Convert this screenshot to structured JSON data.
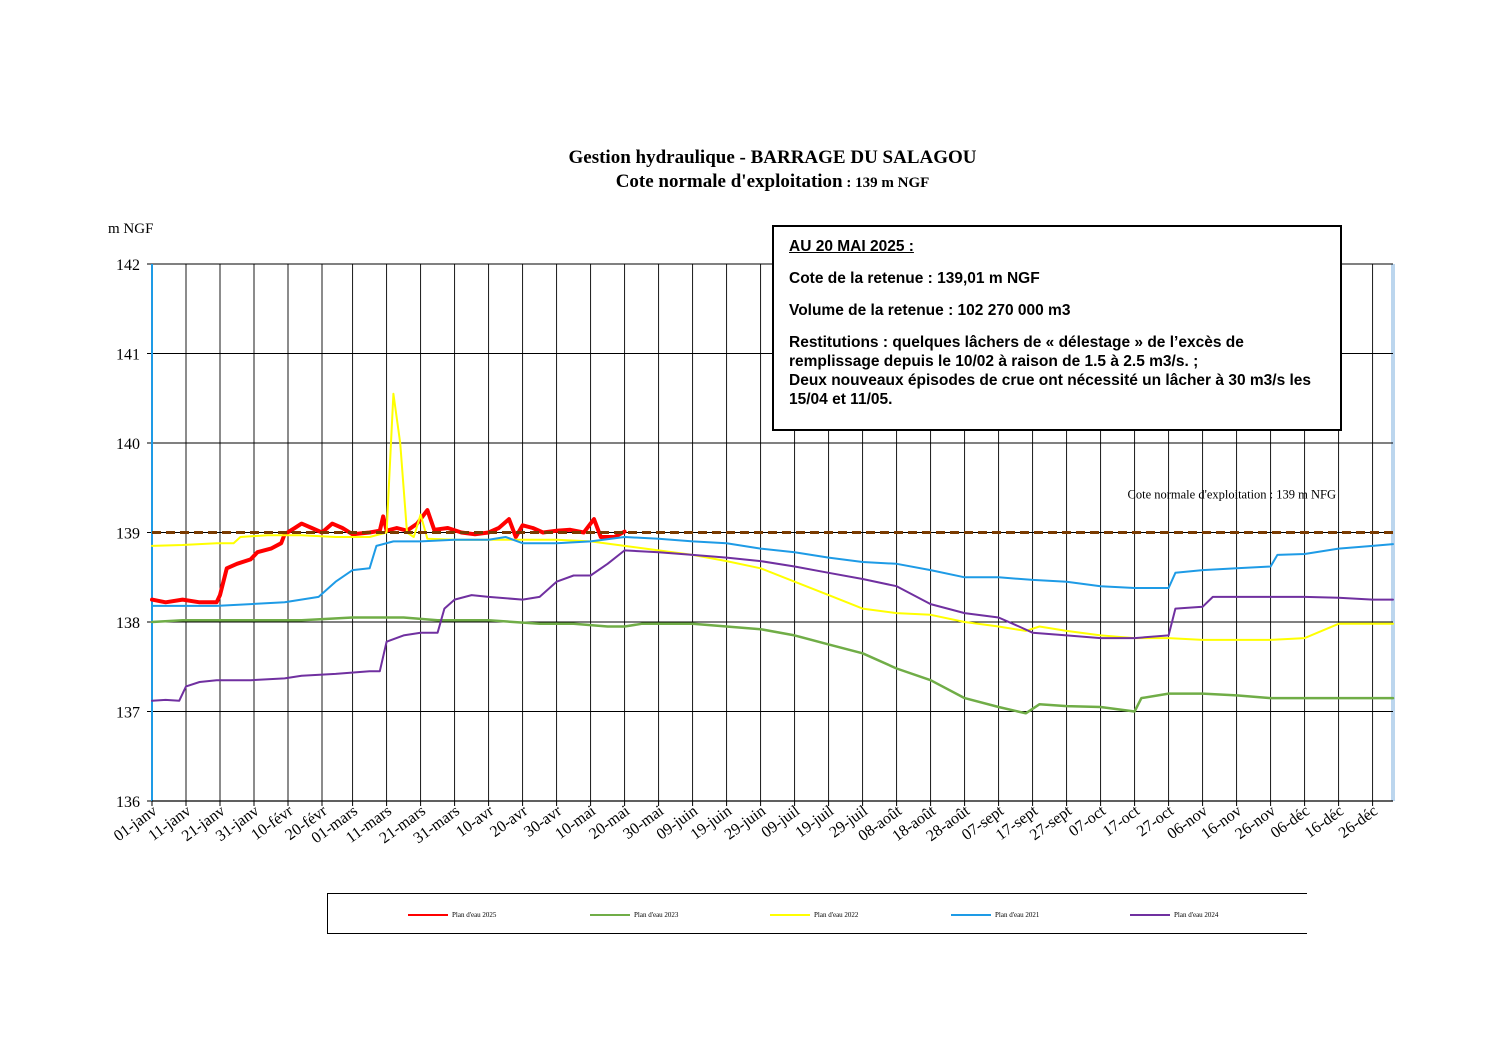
{
  "title": {
    "line1": "Gestion hydraulique - BARRAGE DU SALAGOU",
    "line2_main": "Cote normale d'exploitation",
    "line2_small": " : 139 m NGF"
  },
  "info_box": {
    "heading": "AU 20 MAI 2025 :",
    "cote": "Cote de la retenue : 139,01 m NGF",
    "volume": "Volume de la retenue : 102 270 000 m3",
    "restitutions": "Restitutions : quelques lâchers de « délestage » de l’excès de remplissage depuis le 10/02 à raison de 1.5 à 2.5 m3/s. ;",
    "crues": "Deux nouveaux épisodes de crue ont nécessité un lâcher à 30 m3/s les 15/04 et 11/05."
  },
  "chart_data": {
    "type": "line",
    "title": "Gestion hydraulique - BARRAGE DU SALAGOU",
    "ylabel": "m NGF",
    "ylim": [
      136,
      142
    ],
    "yticks": [
      136,
      137,
      138,
      139,
      140,
      141,
      142
    ],
    "xlim_day_of_year": [
      1,
      366
    ],
    "xticks": [
      {
        "day": 1,
        "label": "01-janv"
      },
      {
        "day": 11,
        "label": "11-janv"
      },
      {
        "day": 21,
        "label": "21-janv"
      },
      {
        "day": 31,
        "label": "31-janv"
      },
      {
        "day": 41,
        "label": "10-févr"
      },
      {
        "day": 51,
        "label": "20-févr"
      },
      {
        "day": 60,
        "label": "01-mars"
      },
      {
        "day": 70,
        "label": "11-mars"
      },
      {
        "day": 80,
        "label": "21-mars"
      },
      {
        "day": 90,
        "label": "31-mars"
      },
      {
        "day": 100,
        "label": "10-avr"
      },
      {
        "day": 110,
        "label": "20-avr"
      },
      {
        "day": 120,
        "label": "30-avr"
      },
      {
        "day": 130,
        "label": "10-mai"
      },
      {
        "day": 140,
        "label": "20-mai"
      },
      {
        "day": 150,
        "label": "30-mai"
      },
      {
        "day": 160,
        "label": "09-juin"
      },
      {
        "day": 170,
        "label": "19-juin"
      },
      {
        "day": 180,
        "label": "29-juin"
      },
      {
        "day": 190,
        "label": "09-juil"
      },
      {
        "day": 200,
        "label": "19-juil"
      },
      {
        "day": 210,
        "label": "29-juil"
      },
      {
        "day": 220,
        "label": "08-août"
      },
      {
        "day": 230,
        "label": "18-août"
      },
      {
        "day": 240,
        "label": "28-août"
      },
      {
        "day": 250,
        "label": "07-sept"
      },
      {
        "day": 260,
        "label": "17-sept"
      },
      {
        "day": 270,
        "label": "27-sept"
      },
      {
        "day": 280,
        "label": "07-oct"
      },
      {
        "day": 290,
        "label": "17-oct"
      },
      {
        "day": 300,
        "label": "27-oct"
      },
      {
        "day": 310,
        "label": "06-nov"
      },
      {
        "day": 320,
        "label": "16-nov"
      },
      {
        "day": 330,
        "label": "26-nov"
      },
      {
        "day": 340,
        "label": "06-déc"
      },
      {
        "day": 350,
        "label": "16-déc"
      },
      {
        "day": 360,
        "label": "26-déc"
      }
    ],
    "reference_line": {
      "value": 139,
      "label": "Cote normale d'exploitation : 139 m NFG",
      "color": "#7a3b00"
    },
    "grid": true,
    "legend_position": "bottom",
    "series": [
      {
        "name": "Plan d'eau 2025",
        "color": "#ff0000",
        "width": 4,
        "points": [
          [
            1,
            138.25
          ],
          [
            5,
            138.22
          ],
          [
            10,
            138.25
          ],
          [
            15,
            138.22
          ],
          [
            20,
            138.22
          ],
          [
            21,
            138.3
          ],
          [
            23,
            138.6
          ],
          [
            26,
            138.65
          ],
          [
            30,
            138.7
          ],
          [
            32,
            138.78
          ],
          [
            36,
            138.82
          ],
          [
            39,
            138.88
          ],
          [
            40,
            138.98
          ],
          [
            43,
            139.05
          ],
          [
            45,
            139.1
          ],
          [
            48,
            139.05
          ],
          [
            51,
            139.0
          ],
          [
            54,
            139.1
          ],
          [
            57,
            139.05
          ],
          [
            60,
            138.98
          ],
          [
            65,
            139.0
          ],
          [
            68,
            139.02
          ],
          [
            69,
            139.18
          ],
          [
            70,
            139.02
          ],
          [
            73,
            139.05
          ],
          [
            76,
            139.02
          ],
          [
            79,
            139.1
          ],
          [
            82,
            139.25
          ],
          [
            84,
            139.03
          ],
          [
            88,
            139.05
          ],
          [
            92,
            139.0
          ],
          [
            96,
            138.98
          ],
          [
            100,
            139.0
          ],
          [
            103,
            139.05
          ],
          [
            106,
            139.15
          ],
          [
            108,
            138.95
          ],
          [
            110,
            139.08
          ],
          [
            113,
            139.05
          ],
          [
            116,
            139.0
          ],
          [
            120,
            139.02
          ],
          [
            124,
            139.03
          ],
          [
            128,
            139.0
          ],
          [
            131,
            139.15
          ],
          [
            133,
            138.95
          ],
          [
            137,
            138.95
          ],
          [
            140,
            139.01
          ]
        ]
      },
      {
        "name": "Plan d'eau 2023",
        "color": "#70ad47",
        "width": 2.5,
        "points": [
          [
            1,
            138.0
          ],
          [
            10,
            138.02
          ],
          [
            20,
            138.02
          ],
          [
            30,
            138.02
          ],
          [
            45,
            138.02
          ],
          [
            60,
            138.05
          ],
          [
            75,
            138.05
          ],
          [
            85,
            138.02
          ],
          [
            100,
            138.02
          ],
          [
            115,
            137.98
          ],
          [
            125,
            137.98
          ],
          [
            135,
            137.95
          ],
          [
            140,
            137.95
          ],
          [
            145,
            137.98
          ],
          [
            160,
            137.98
          ],
          [
            170,
            137.95
          ],
          [
            180,
            137.92
          ],
          [
            190,
            137.85
          ],
          [
            200,
            137.75
          ],
          [
            210,
            137.65
          ],
          [
            220,
            137.48
          ],
          [
            230,
            137.35
          ],
          [
            240,
            137.15
          ],
          [
            250,
            137.05
          ],
          [
            258,
            136.98
          ],
          [
            262,
            137.08
          ],
          [
            270,
            137.06
          ],
          [
            280,
            137.05
          ],
          [
            290,
            137.0
          ],
          [
            292,
            137.15
          ],
          [
            300,
            137.2
          ],
          [
            310,
            137.2
          ],
          [
            320,
            137.18
          ],
          [
            330,
            137.15
          ],
          [
            340,
            137.15
          ],
          [
            350,
            137.15
          ],
          [
            366,
            137.15
          ]
        ]
      },
      {
        "name": "Plan d'eau 2022",
        "color": "#ffff00",
        "width": 2,
        "points": [
          [
            1,
            138.85
          ],
          [
            10,
            138.86
          ],
          [
            20,
            138.88
          ],
          [
            25,
            138.88
          ],
          [
            27,
            138.95
          ],
          [
            35,
            138.97
          ],
          [
            45,
            138.97
          ],
          [
            55,
            138.95
          ],
          [
            65,
            138.95
          ],
          [
            70,
            139.0
          ],
          [
            72,
            140.55
          ],
          [
            74,
            140.0
          ],
          [
            76,
            139.0
          ],
          [
            78,
            138.95
          ],
          [
            80,
            139.2
          ],
          [
            82,
            138.93
          ],
          [
            90,
            138.92
          ],
          [
            100,
            138.92
          ],
          [
            110,
            138.92
          ],
          [
            120,
            138.92
          ],
          [
            130,
            138.9
          ],
          [
            140,
            138.85
          ],
          [
            150,
            138.8
          ],
          [
            160,
            138.75
          ],
          [
            170,
            138.68
          ],
          [
            180,
            138.6
          ],
          [
            190,
            138.45
          ],
          [
            200,
            138.3
          ],
          [
            210,
            138.15
          ],
          [
            220,
            138.1
          ],
          [
            230,
            138.08
          ],
          [
            240,
            138.0
          ],
          [
            250,
            137.95
          ],
          [
            258,
            137.9
          ],
          [
            262,
            137.95
          ],
          [
            270,
            137.9
          ],
          [
            280,
            137.85
          ],
          [
            290,
            137.82
          ],
          [
            300,
            137.82
          ],
          [
            310,
            137.8
          ],
          [
            320,
            137.8
          ],
          [
            330,
            137.8
          ],
          [
            340,
            137.82
          ],
          [
            350,
            137.98
          ],
          [
            366,
            137.98
          ]
        ]
      },
      {
        "name": "Plan d'eau 2021",
        "color": "#1e9be6",
        "width": 2,
        "points": [
          [
            1,
            138.18
          ],
          [
            10,
            138.18
          ],
          [
            20,
            138.18
          ],
          [
            30,
            138.2
          ],
          [
            40,
            138.22
          ],
          [
            50,
            138.28
          ],
          [
            55,
            138.45
          ],
          [
            60,
            138.58
          ],
          [
            65,
            138.6
          ],
          [
            67,
            138.85
          ],
          [
            72,
            138.9
          ],
          [
            80,
            138.9
          ],
          [
            90,
            138.92
          ],
          [
            100,
            138.92
          ],
          [
            105,
            138.95
          ],
          [
            110,
            138.88
          ],
          [
            120,
            138.88
          ],
          [
            130,
            138.9
          ],
          [
            140,
            138.95
          ],
          [
            150,
            138.93
          ],
          [
            160,
            138.9
          ],
          [
            170,
            138.88
          ],
          [
            180,
            138.82
          ],
          [
            190,
            138.78
          ],
          [
            200,
            138.72
          ],
          [
            210,
            138.67
          ],
          [
            220,
            138.65
          ],
          [
            230,
            138.58
          ],
          [
            240,
            138.5
          ],
          [
            250,
            138.5
          ],
          [
            260,
            138.47
          ],
          [
            270,
            138.45
          ],
          [
            280,
            138.4
          ],
          [
            290,
            138.38
          ],
          [
            300,
            138.38
          ],
          [
            302,
            138.55
          ],
          [
            310,
            138.58
          ],
          [
            320,
            138.6
          ],
          [
            330,
            138.62
          ],
          [
            332,
            138.75
          ],
          [
            340,
            138.76
          ],
          [
            350,
            138.82
          ],
          [
            360,
            138.85
          ],
          [
            366,
            138.87
          ]
        ]
      },
      {
        "name": "Plan d'eau 2024",
        "color": "#7030a0",
        "width": 2,
        "points": [
          [
            1,
            137.12
          ],
          [
            5,
            137.13
          ],
          [
            9,
            137.12
          ],
          [
            11,
            137.28
          ],
          [
            15,
            137.33
          ],
          [
            20,
            137.35
          ],
          [
            30,
            137.35
          ],
          [
            40,
            137.37
          ],
          [
            45,
            137.4
          ],
          [
            55,
            137.42
          ],
          [
            65,
            137.45
          ],
          [
            68,
            137.45
          ],
          [
            70,
            137.78
          ],
          [
            75,
            137.85
          ],
          [
            80,
            137.88
          ],
          [
            85,
            137.88
          ],
          [
            87,
            138.15
          ],
          [
            90,
            138.25
          ],
          [
            95,
            138.3
          ],
          [
            100,
            138.28
          ],
          [
            110,
            138.25
          ],
          [
            115,
            138.28
          ],
          [
            120,
            138.45
          ],
          [
            125,
            138.52
          ],
          [
            130,
            138.52
          ],
          [
            135,
            138.65
          ],
          [
            140,
            138.8
          ],
          [
            150,
            138.78
          ],
          [
            160,
            138.75
          ],
          [
            170,
            138.72
          ],
          [
            180,
            138.68
          ],
          [
            190,
            138.62
          ],
          [
            200,
            138.55
          ],
          [
            210,
            138.48
          ],
          [
            220,
            138.4
          ],
          [
            230,
            138.2
          ],
          [
            240,
            138.1
          ],
          [
            250,
            138.05
          ],
          [
            256,
            137.95
          ],
          [
            260,
            137.88
          ],
          [
            270,
            137.85
          ],
          [
            280,
            137.82
          ],
          [
            290,
            137.82
          ],
          [
            300,
            137.85
          ],
          [
            302,
            138.15
          ],
          [
            310,
            138.17
          ],
          [
            313,
            138.28
          ],
          [
            320,
            138.28
          ],
          [
            330,
            138.28
          ],
          [
            340,
            138.28
          ],
          [
            350,
            138.27
          ],
          [
            360,
            138.25
          ],
          [
            366,
            138.25
          ]
        ]
      }
    ]
  }
}
